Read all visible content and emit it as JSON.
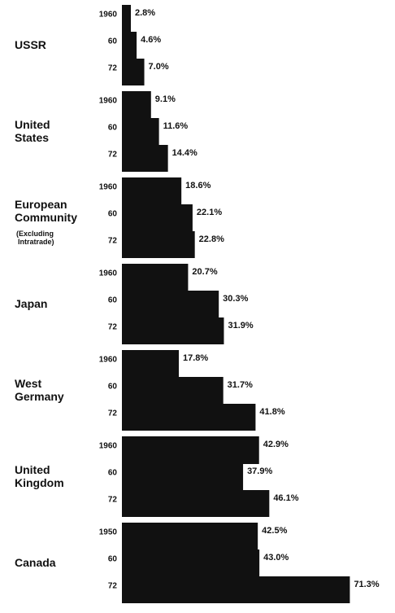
{
  "chart_data": {
    "type": "bar",
    "orientation": "horizontal",
    "color": "#111111",
    "xlim": [
      0,
      75
    ],
    "groups": [
      {
        "name": "USSR",
        "years": [
          "1960",
          "60",
          "72"
        ],
        "values": [
          2.8,
          4.6,
          7.0
        ],
        "value_labels": [
          "2.8%",
          "4.6%",
          "7.0%"
        ]
      },
      {
        "name": "United States",
        "years": [
          "1960",
          "60",
          "72"
        ],
        "values": [
          9.1,
          11.6,
          14.4
        ],
        "value_labels": [
          "9.1%",
          "11.6%",
          "14.4%"
        ]
      },
      {
        "name": "European Community",
        "note": "(Excluding Intratrade)",
        "years": [
          "1960",
          "60",
          "72"
        ],
        "values": [
          18.6,
          22.1,
          22.8
        ],
        "value_labels": [
          "18.6%",
          "22.1%",
          "22.8%"
        ]
      },
      {
        "name": "Japan",
        "years": [
          "1960",
          "60",
          "72"
        ],
        "values": [
          20.7,
          30.3,
          31.9
        ],
        "value_labels": [
          "20.7%",
          "30.3%",
          "31.9%"
        ]
      },
      {
        "name": "West Germany",
        "years": [
          "1960",
          "60",
          "72"
        ],
        "values": [
          17.8,
          31.7,
          41.8
        ],
        "value_labels": [
          "17.8%",
          "31.7%",
          "41.8%"
        ]
      },
      {
        "name": "United Kingdom",
        "years": [
          "1960",
          "60",
          "72"
        ],
        "values": [
          42.9,
          37.9,
          46.1
        ],
        "value_labels": [
          "42.9%",
          "37.9%",
          "46.1%"
        ]
      },
      {
        "name": "Canada",
        "years": [
          "1950",
          "60",
          "72"
        ],
        "values": [
          42.5,
          43.0,
          71.3
        ],
        "value_labels": [
          "42.5%",
          "43.0%",
          "71.3%"
        ]
      }
    ]
  }
}
